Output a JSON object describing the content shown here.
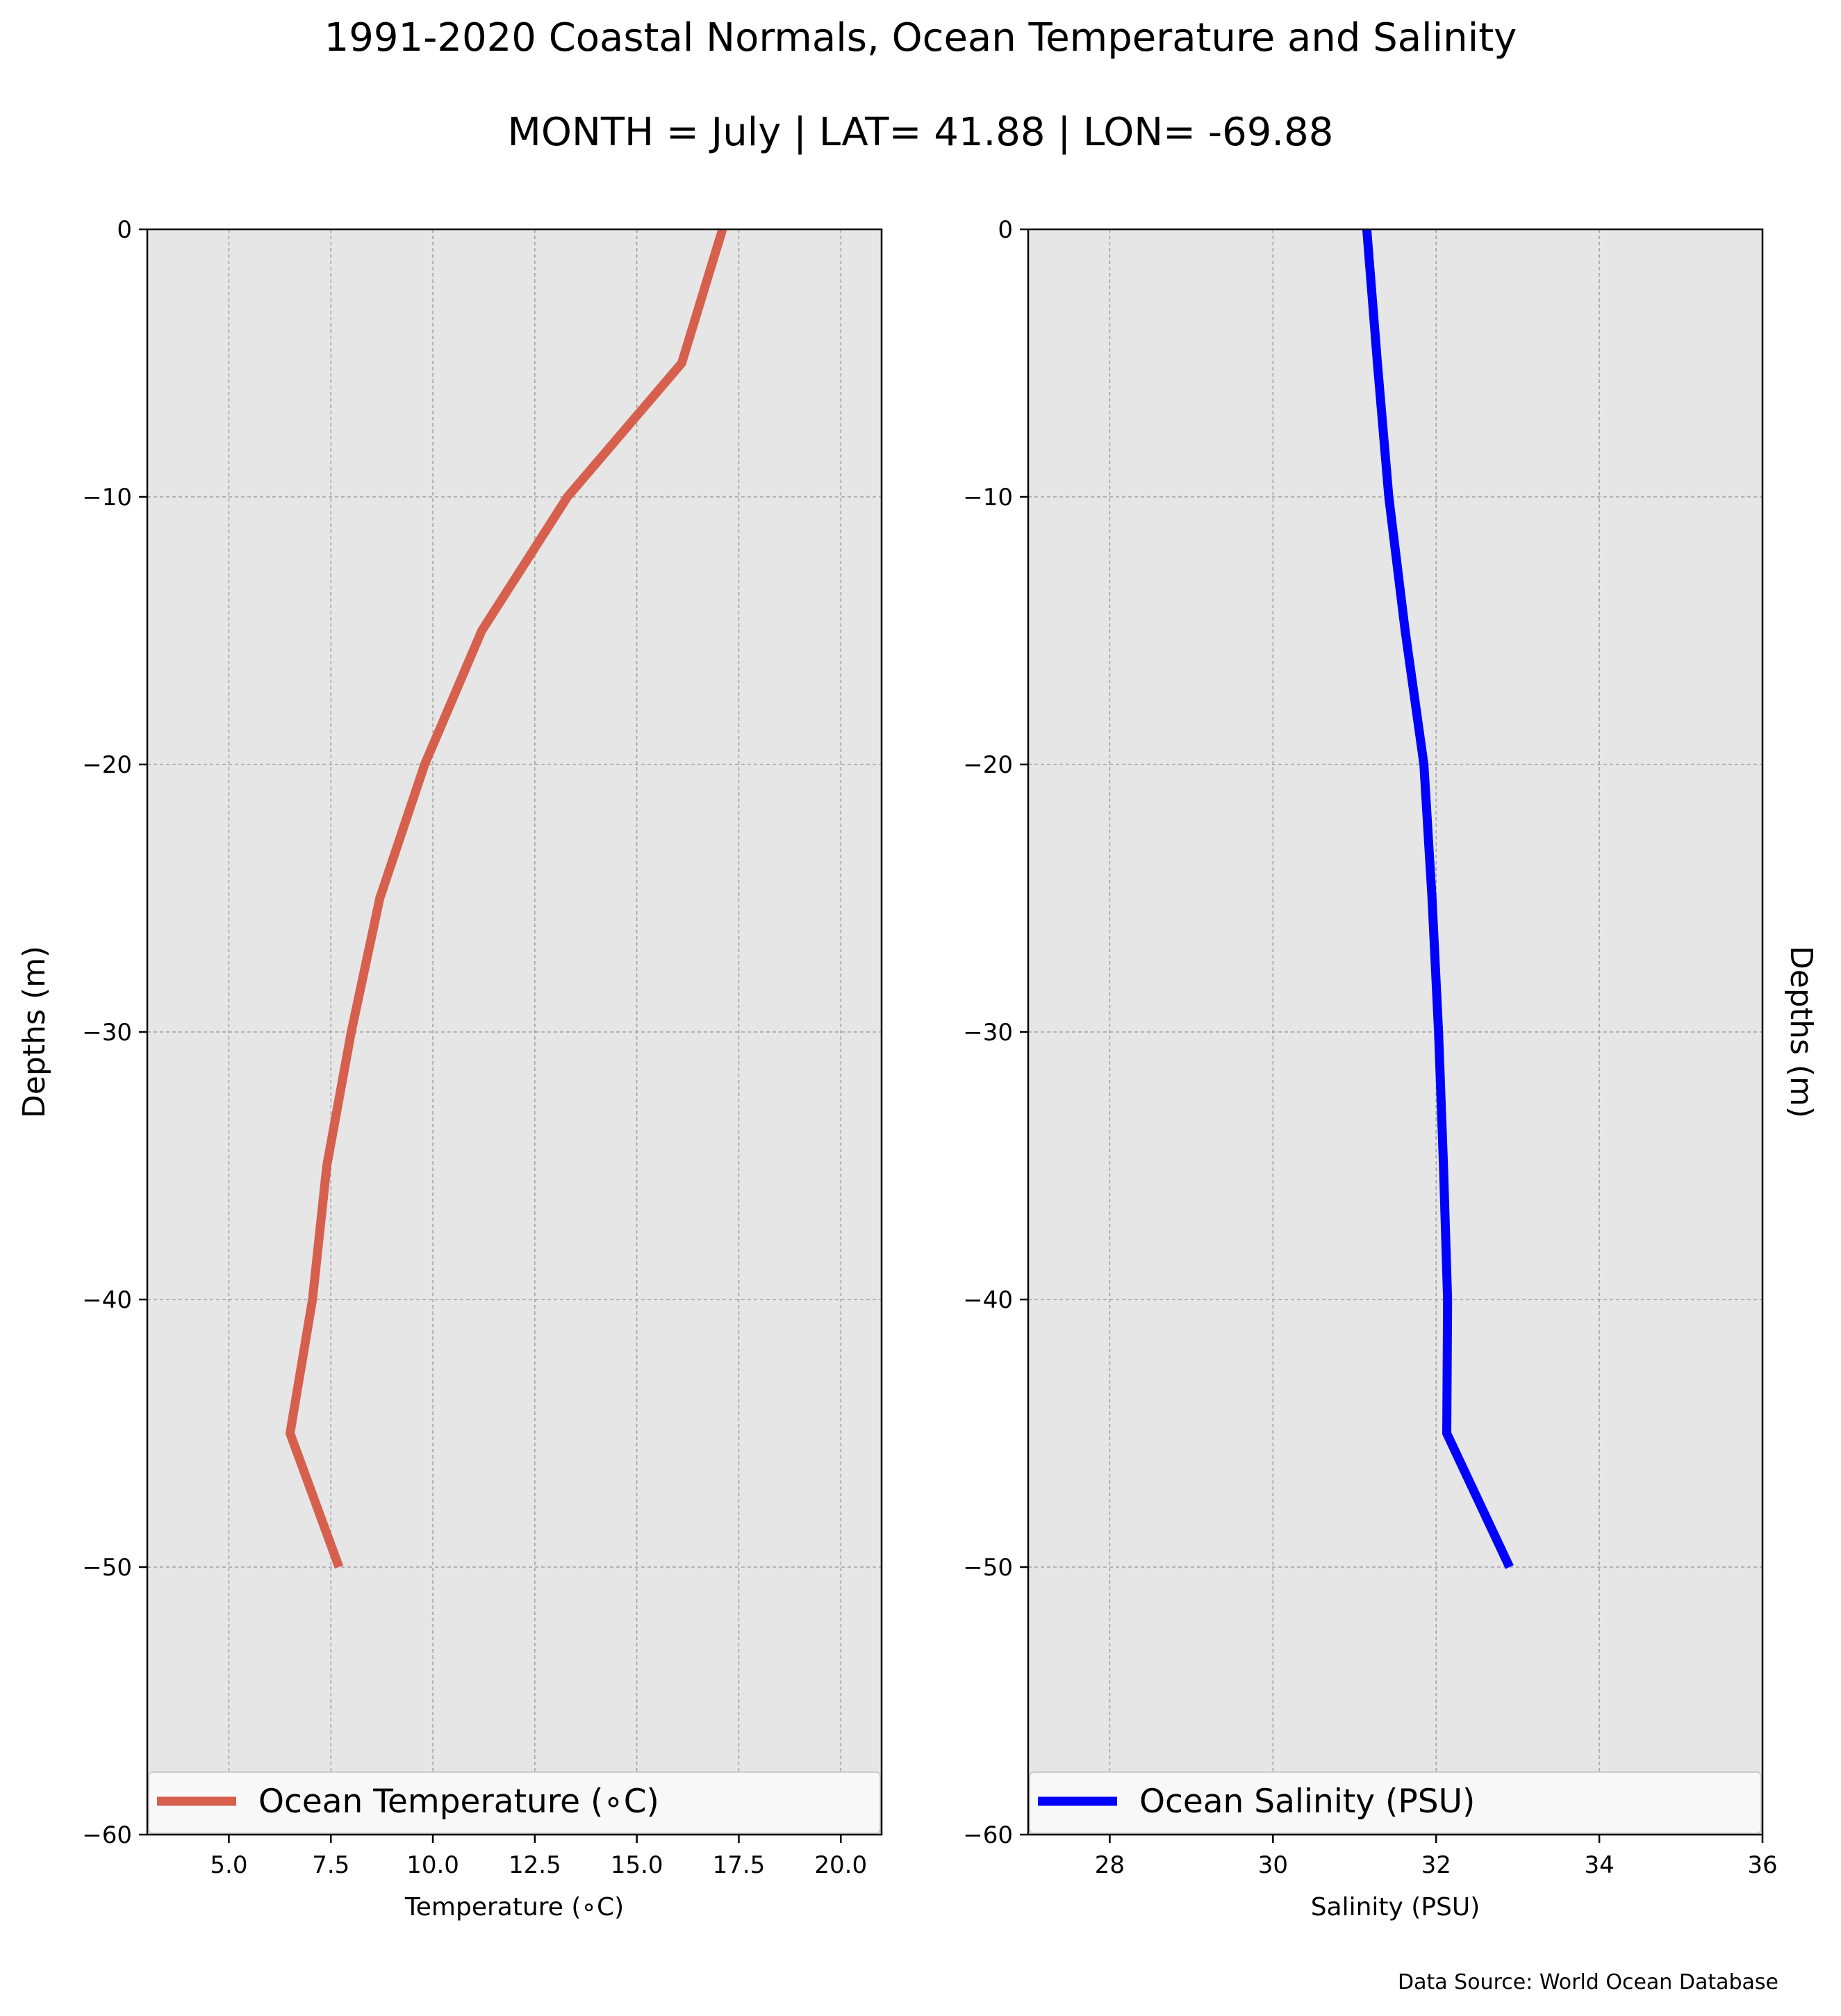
{
  "header": {
    "title": "1991-2020 Coastal Normals, Ocean Temperature and Salinity",
    "subtitle": "MONTH = July | LAT= 41.88 | LON= -69.88"
  },
  "footer": {
    "source": "Data Source: World Ocean Database"
  },
  "colors": {
    "panel_bg": "#e6e6e6",
    "temperature_line": "#d6604d",
    "salinity_line": "#0000ff",
    "grid": "#a0a0a0"
  },
  "chart_data": [
    {
      "type": "line",
      "orientation": "depth-profile",
      "xlabel": "Temperature ($^\\circ$C)",
      "xlabel_display": "Temperature (∘C)",
      "ylabel": "Depths (m)",
      "xlim": [
        3,
        21
      ],
      "ylim": [
        -60,
        0
      ],
      "xticks": [
        5.0,
        7.5,
        10.0,
        12.5,
        15.0,
        17.5,
        20.0
      ],
      "xtick_labels": [
        "5.0",
        "7.5",
        "10.0",
        "12.5",
        "15.0",
        "17.5",
        "20.0"
      ],
      "yticks": [
        0,
        -10,
        -20,
        -30,
        -40,
        -50,
        -60
      ],
      "ytick_labels": [
        "0",
        "−10",
        "−20",
        "−30",
        "−40",
        "−50",
        "−60"
      ],
      "grid": true,
      "legend_position": "bottom",
      "series": [
        {
          "name": "Ocean Temperature (∘C)",
          "color": "#d6604d",
          "x": [
            17.1,
            16.1,
            13.3,
            11.2,
            9.8,
            8.7,
            8.0,
            7.4,
            7.05,
            6.5,
            7.7
          ],
          "y": [
            0,
            -5,
            -10,
            -15,
            -20,
            -25,
            -30,
            -35,
            -40,
            -45,
            -50
          ]
        }
      ]
    },
    {
      "type": "line",
      "orientation": "depth-profile",
      "xlabel": "Salinity (PSU)",
      "ylabel": "Depths (m)",
      "xlim": [
        27,
        36
      ],
      "ylim": [
        -60,
        0
      ],
      "xticks": [
        28,
        30,
        32,
        34,
        36
      ],
      "xtick_labels": [
        "28",
        "30",
        "32",
        "34",
        "36"
      ],
      "yticks": [
        0,
        -10,
        -20,
        -30,
        -40,
        -50,
        -60
      ],
      "ytick_labels": [
        "0",
        "−10",
        "−20",
        "−30",
        "−40",
        "−50",
        "−60"
      ],
      "grid": true,
      "legend_position": "bottom",
      "series": [
        {
          "name": "Ocean Salinity (PSU)",
          "color": "#0000ff",
          "x": [
            31.15,
            31.28,
            31.42,
            31.62,
            31.85,
            31.95,
            32.03,
            32.09,
            32.14,
            32.13,
            32.9
          ],
          "y": [
            0,
            -5,
            -10,
            -15,
            -20,
            -25,
            -30,
            -35,
            -40,
            -45,
            -50
          ]
        }
      ]
    }
  ]
}
